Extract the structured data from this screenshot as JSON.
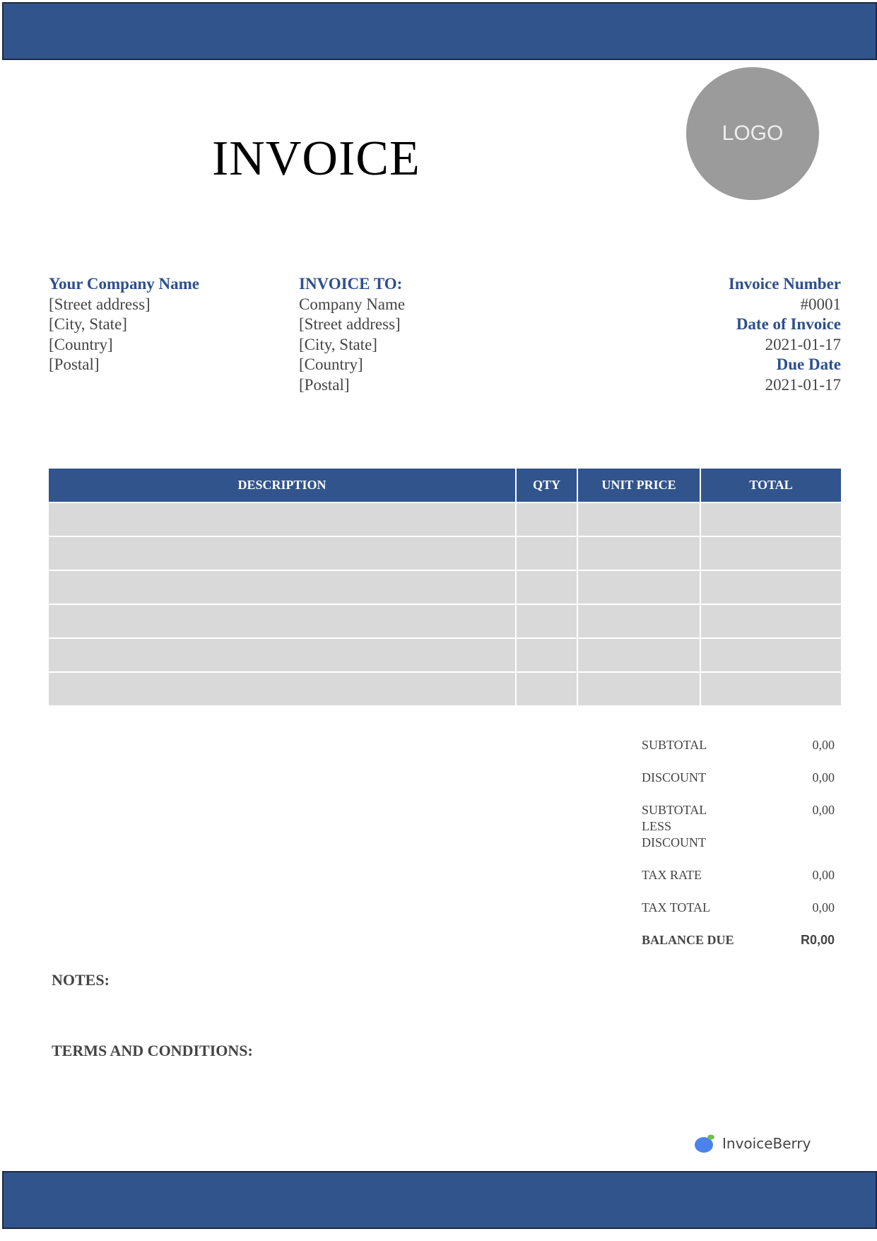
{
  "title": "INVOICE",
  "logo_text": "LOGO",
  "from": {
    "company": "Your Company Name",
    "lines": [
      "[Street address]",
      "[City, State]",
      "[Country]",
      "[Postal]"
    ]
  },
  "to": {
    "heading": "INVOICE TO:",
    "lines": [
      "Company Name",
      "[Street address]",
      "[City, State]",
      "[Country]",
      "[Postal]"
    ]
  },
  "meta": {
    "number_label": "Invoice Number",
    "number": "#0001",
    "date_label": "Date of Invoice",
    "date": "2021-01-17",
    "due_label": "Due Date",
    "due": "2021-01-17"
  },
  "table": {
    "headers": [
      "DESCRIPTION",
      "QTY",
      "UNIT PRICE",
      "TOTAL"
    ],
    "row_count": 6
  },
  "totals": [
    {
      "label": "SUBTOTAL",
      "value": "0,00"
    },
    {
      "label": "DISCOUNT",
      "value": "0,00"
    },
    {
      "label": "SUBTOTAL LESS DISCOUNT",
      "value": "0,00"
    },
    {
      "label": "TAX RATE",
      "value": "0,00"
    },
    {
      "label": "TAX TOTAL",
      "value": "0,00"
    },
    {
      "label": "BALANCE DUE",
      "value": "R0,00"
    }
  ],
  "notes_label": "NOTES:",
  "terms_label": "TERMS AND CONDITIONS:",
  "brand": "InvoiceBerry",
  "colors": {
    "accent": "#31548d",
    "heading_text": "#2d4f8c",
    "row_fill": "#d9d9d9",
    "logo_fill": "#9b9b9b"
  }
}
